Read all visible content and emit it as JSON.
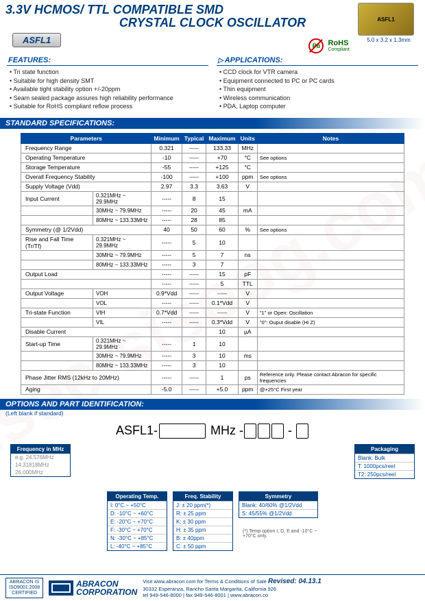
{
  "header": {
    "title1": "3.3V HCMOS/ TTL COMPATIBLE SMD",
    "title2": "CRYSTAL CLOCK OSCILLATOR",
    "part": "ASFL1",
    "chip_label": "ASFL1",
    "dim": "5.0 x 3.2 x 1.3mm",
    "rohs": "RoHS",
    "rohs_sub": "Compliant",
    "pb": "Pb"
  },
  "sections": {
    "features": "FEATURES:",
    "applications": "APPLICATIONS:",
    "specs": "STANDARD SPECIFICATIONS:",
    "options": "OPTIONS AND PART IDENTIFICATION:",
    "left_blank": "(Left blank if standard)"
  },
  "features": [
    "• Tri state function",
    "• Suitable for high density SMT",
    "• Available tight stability option +/-20ppm",
    "• Seam sealed package assures high reliability performance",
    "• Suitable for RoHS compliant reflow process"
  ],
  "applications": [
    "• CCD clock for VTR camera",
    "• Equipment connected to PC or PC cards",
    "• Thin equipment",
    "• Wireless communication",
    "• PDA, Laptop computer"
  ],
  "spec": {
    "headers": [
      "Parameters",
      "Minimum",
      "Typical",
      "Maximum",
      "Units",
      "Notes"
    ],
    "rows": [
      {
        "p": "Frequency Range",
        "sub": "",
        "min": "0.321",
        "typ": "-----",
        "max": "133.33",
        "u": "MHz",
        "n": ""
      },
      {
        "p": "Operating Temperature",
        "sub": "",
        "min": "-10",
        "typ": "-----",
        "max": "+70",
        "u": "°C",
        "n": "See options"
      },
      {
        "p": "Storage Temperature",
        "sub": "",
        "min": "-55",
        "typ": "-----",
        "max": "+125",
        "u": "°C",
        "n": ""
      },
      {
        "p": "Overall Frequency Stability",
        "sub": "",
        "min": "-100",
        "typ": "-----",
        "max": "+100",
        "u": "ppm",
        "n": "See options"
      },
      {
        "p": "Supply Voltage (Vdd)",
        "sub": "",
        "min": "2.97",
        "typ": "3.3",
        "max": "3.63",
        "u": "V",
        "n": ""
      },
      {
        "p": "Input Current",
        "sub": "0.321MHz ~ 29.9MHz",
        "min": "-----",
        "typ": "8",
        "max": "15",
        "u": "",
        "n": ""
      },
      {
        "p": "",
        "sub": "30MHz ~ 79.9MHz",
        "min": "-----",
        "typ": "20",
        "max": "45",
        "u": "mA",
        "n": ""
      },
      {
        "p": "",
        "sub": "80MHz ~ 133.33MHz",
        "min": "-----",
        "typ": "28",
        "max": "85",
        "u": "",
        "n": ""
      },
      {
        "p": "Symmetry (@ 1/2Vdd)",
        "sub": "",
        "min": "40",
        "typ": "50",
        "max": "60",
        "u": "%",
        "n": "See options"
      },
      {
        "p": "Rise and Fall Time (Tr/Tf)",
        "sub": "0.321MHz ~ 29.9MHz",
        "min": "-----",
        "typ": "5",
        "max": "10",
        "u": "",
        "n": ""
      },
      {
        "p": "",
        "sub": "30MHz ~ 79.9MHz",
        "min": "-----",
        "typ": "5",
        "max": "7",
        "u": "ns",
        "n": ""
      },
      {
        "p": "",
        "sub": "80MHz ~ 133.33MHz",
        "min": "-----",
        "typ": "3",
        "max": "7",
        "u": "",
        "n": ""
      },
      {
        "p": "Output Load",
        "sub": "",
        "min": "-----",
        "typ": "-----",
        "max": "15",
        "u": "pF",
        "n": ""
      },
      {
        "p": "",
        "sub": "",
        "min": "-----",
        "typ": "-----",
        "max": "5",
        "u": "TTL",
        "n": ""
      },
      {
        "p": "Output Voltage",
        "sub": "VOH",
        "min": "0.9*Vdd",
        "typ": "-----",
        "max": "-----",
        "u": "V",
        "n": ""
      },
      {
        "p": "",
        "sub": "VOL",
        "min": "-----",
        "typ": "-----",
        "max": "0.1*Vdd",
        "u": "V",
        "n": ""
      },
      {
        "p": "Tri-state Function",
        "sub": "VIH",
        "min": "0.7*Vdd",
        "typ": "-----",
        "max": "-----",
        "u": "V",
        "n": "\"1\" or Open: Oscillation"
      },
      {
        "p": "",
        "sub": "VIL",
        "min": "-----",
        "typ": "-----",
        "max": "0.3*Vdd",
        "u": "V",
        "n": "\"0\": Ouput disable (Hi Z)"
      },
      {
        "p": "Disable Current",
        "sub": "",
        "min": "",
        "typ": "",
        "max": "10",
        "u": "µA",
        "n": ""
      },
      {
        "p": "Start-up Time",
        "sub": "0.321MHz ~ 29.9MHz",
        "min": "-----",
        "typ": "1",
        "max": "10",
        "u": "",
        "n": ""
      },
      {
        "p": "",
        "sub": "30MHz ~ 79.9MHz",
        "min": "-----",
        "typ": "3",
        "max": "10",
        "u": "ms",
        "n": ""
      },
      {
        "p": "",
        "sub": "80MHz ~ 133.33MHz",
        "min": "-----",
        "typ": "3",
        "max": "10",
        "u": "",
        "n": ""
      },
      {
        "p": "Phase Jitter RMS (12kHz to 20MHz)",
        "sub": "",
        "min": "-----",
        "typ": "-----",
        "max": "1",
        "u": "ps",
        "n": "Reference only. Please contact Abracon for specific frequencies"
      },
      {
        "p": "Aging",
        "sub": "",
        "min": "-5.0",
        "typ": "-----",
        "max": "+5.0",
        "u": "ppm",
        "n": "@+25°C  First year"
      }
    ]
  },
  "partnum": {
    "prefix": "ASFL1-",
    "mid": "MHz -"
  },
  "opt": {
    "freq": {
      "h": "Frequency in MHz",
      "rows": [
        "e.g. 24.576MHz",
        "      14.31818MHz",
        "      26.000MHz"
      ]
    },
    "temp": {
      "h": "Operating Temp.",
      "rows": [
        "I: 0°C ~ +50°C",
        "D: -10°C ~ +60°C",
        "E: -20°C ~ +70°C",
        "F: -30°C ~ +70°C",
        "N: -30°C ~ +85°C",
        "L: -40°C ~ +85°C"
      ]
    },
    "stab": {
      "h": "Freq. Stability",
      "rows": [
        "J: ± 20 ppm(*)",
        "R: ± 25 ppm",
        "K: ± 30 ppm",
        "H: ± 35 ppm",
        "B: ± 40ppm",
        "C: ± 50 ppm"
      ]
    },
    "sym": {
      "h": "Symmetry",
      "rows": [
        "Blank: 40/60% @1/2Vdd",
        "S: 45/55% @1/2Vdd"
      ]
    },
    "pkg": {
      "h": "Packaging",
      "rows": [
        "Blank: Bulk",
        "T: 1000pcs/reel",
        "T2: 250pcs/reel"
      ]
    },
    "temp_note": "(*) Temp option I, D, E and -10°C ~ +70°C only."
  },
  "footer": {
    "cert": "ABRACON IS\nISO9001:2008\nCERTIFIED",
    "logo": "ABRACON",
    "logo2": "CORPORATION",
    "info": "Visit www.abracon.com for Terms & Conditions of Sale",
    "addr": "30332 Esperanza, Rancho Santa Margarita, California 926",
    "tel": "tel 949-546-8000 |  fax 949-546-8001 |  www.abracon.co",
    "revised": "Revised: 04.13.1"
  }
}
